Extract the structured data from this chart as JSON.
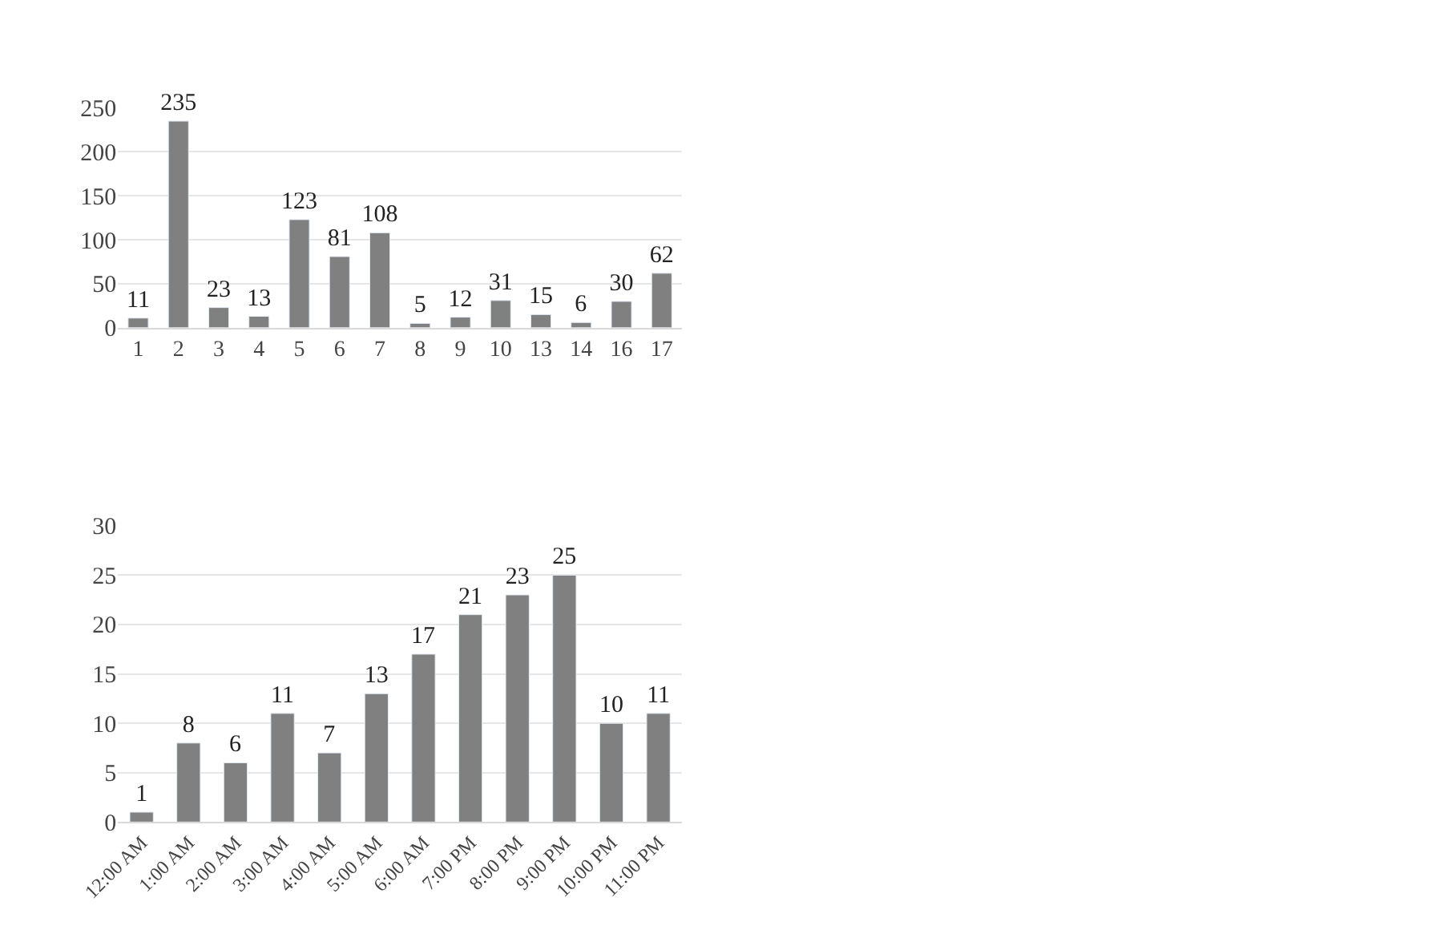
{
  "chart_data": [
    {
      "type": "bar",
      "categories": [
        "1",
        "2",
        "3",
        "4",
        "5",
        "6",
        "7",
        "8",
        "9",
        "10",
        "13",
        "14",
        "16",
        "17"
      ],
      "values": [
        11,
        235,
        23,
        13,
        123,
        81,
        108,
        5,
        12,
        31,
        15,
        6,
        30,
        62
      ],
      "color": "#808080",
      "ylim": [
        0,
        250
      ],
      "yticks": [
        0,
        50,
        100,
        150,
        200,
        250
      ],
      "grid": "y",
      "data_labels": true
    },
    {
      "type": "bar",
      "categories": [
        "12:00 AM",
        "1:00 AM",
        "2:00 AM",
        "3:00 AM",
        "4:00 AM",
        "5:00 AM",
        "6:00 AM",
        "7:00 PM",
        "8:00 PM",
        "9:00 PM",
        "10:00 PM",
        "11:00 PM"
      ],
      "values": [
        1,
        8,
        6,
        11,
        7,
        13,
        17,
        21,
        23,
        25,
        10,
        11
      ],
      "color": "#808080",
      "ylim": [
        0,
        30
      ],
      "yticks": [
        0,
        5,
        10,
        15,
        20,
        25,
        30
      ],
      "grid": "y",
      "data_labels": true
    }
  ]
}
